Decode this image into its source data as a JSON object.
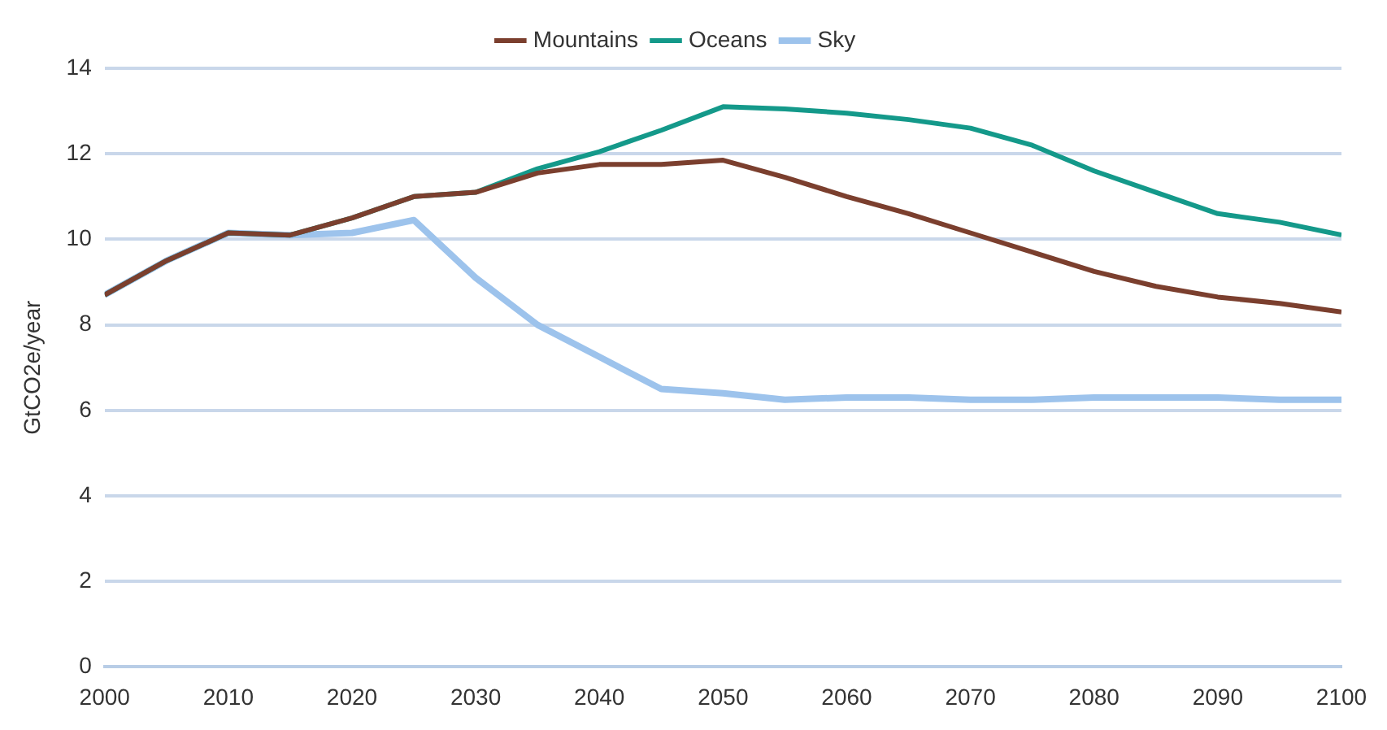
{
  "chart_data": {
    "type": "line",
    "ylabel": "GtCO2e/year",
    "x": [
      2000,
      2005,
      2010,
      2015,
      2020,
      2025,
      2030,
      2035,
      2040,
      2045,
      2050,
      2055,
      2060,
      2065,
      2070,
      2075,
      2080,
      2085,
      2090,
      2095,
      2100
    ],
    "series": [
      {
        "name": "Mountains",
        "color": "#7b3f2e",
        "values": [
          8.7,
          9.5,
          10.15,
          10.1,
          10.5,
          11.0,
          11.1,
          11.55,
          11.75,
          11.75,
          11.85,
          11.45,
          11.0,
          10.6,
          10.15,
          9.7,
          9.25,
          8.9,
          8.65,
          8.5,
          8.3
        ]
      },
      {
        "name": "Oceans",
        "color": "#14998a",
        "values": [
          8.7,
          9.5,
          10.15,
          10.1,
          10.5,
          11.0,
          11.1,
          11.65,
          12.05,
          12.55,
          13.1,
          13.05,
          12.95,
          12.8,
          12.6,
          12.2,
          11.6,
          11.1,
          10.6,
          10.4,
          10.1
        ]
      },
      {
        "name": "Sky",
        "color": "#9dc3ec",
        "values": [
          8.7,
          9.5,
          10.15,
          10.1,
          10.15,
          10.45,
          9.1,
          8.0,
          7.25,
          6.5,
          6.4,
          6.25,
          6.3,
          6.3,
          6.25,
          6.25,
          6.3,
          6.3,
          6.3,
          6.25,
          6.25
        ]
      }
    ],
    "xlim": [
      2000,
      2100
    ],
    "xticks": [
      2000,
      2010,
      2020,
      2030,
      2040,
      2050,
      2060,
      2070,
      2080,
      2090,
      2100
    ],
    "ylim": [
      0,
      14
    ],
    "yticks": [
      0,
      2,
      4,
      6,
      8,
      10,
      12,
      14
    ],
    "grid": "y",
    "legend": "top",
    "marker": "none",
    "line_style": "solid"
  }
}
